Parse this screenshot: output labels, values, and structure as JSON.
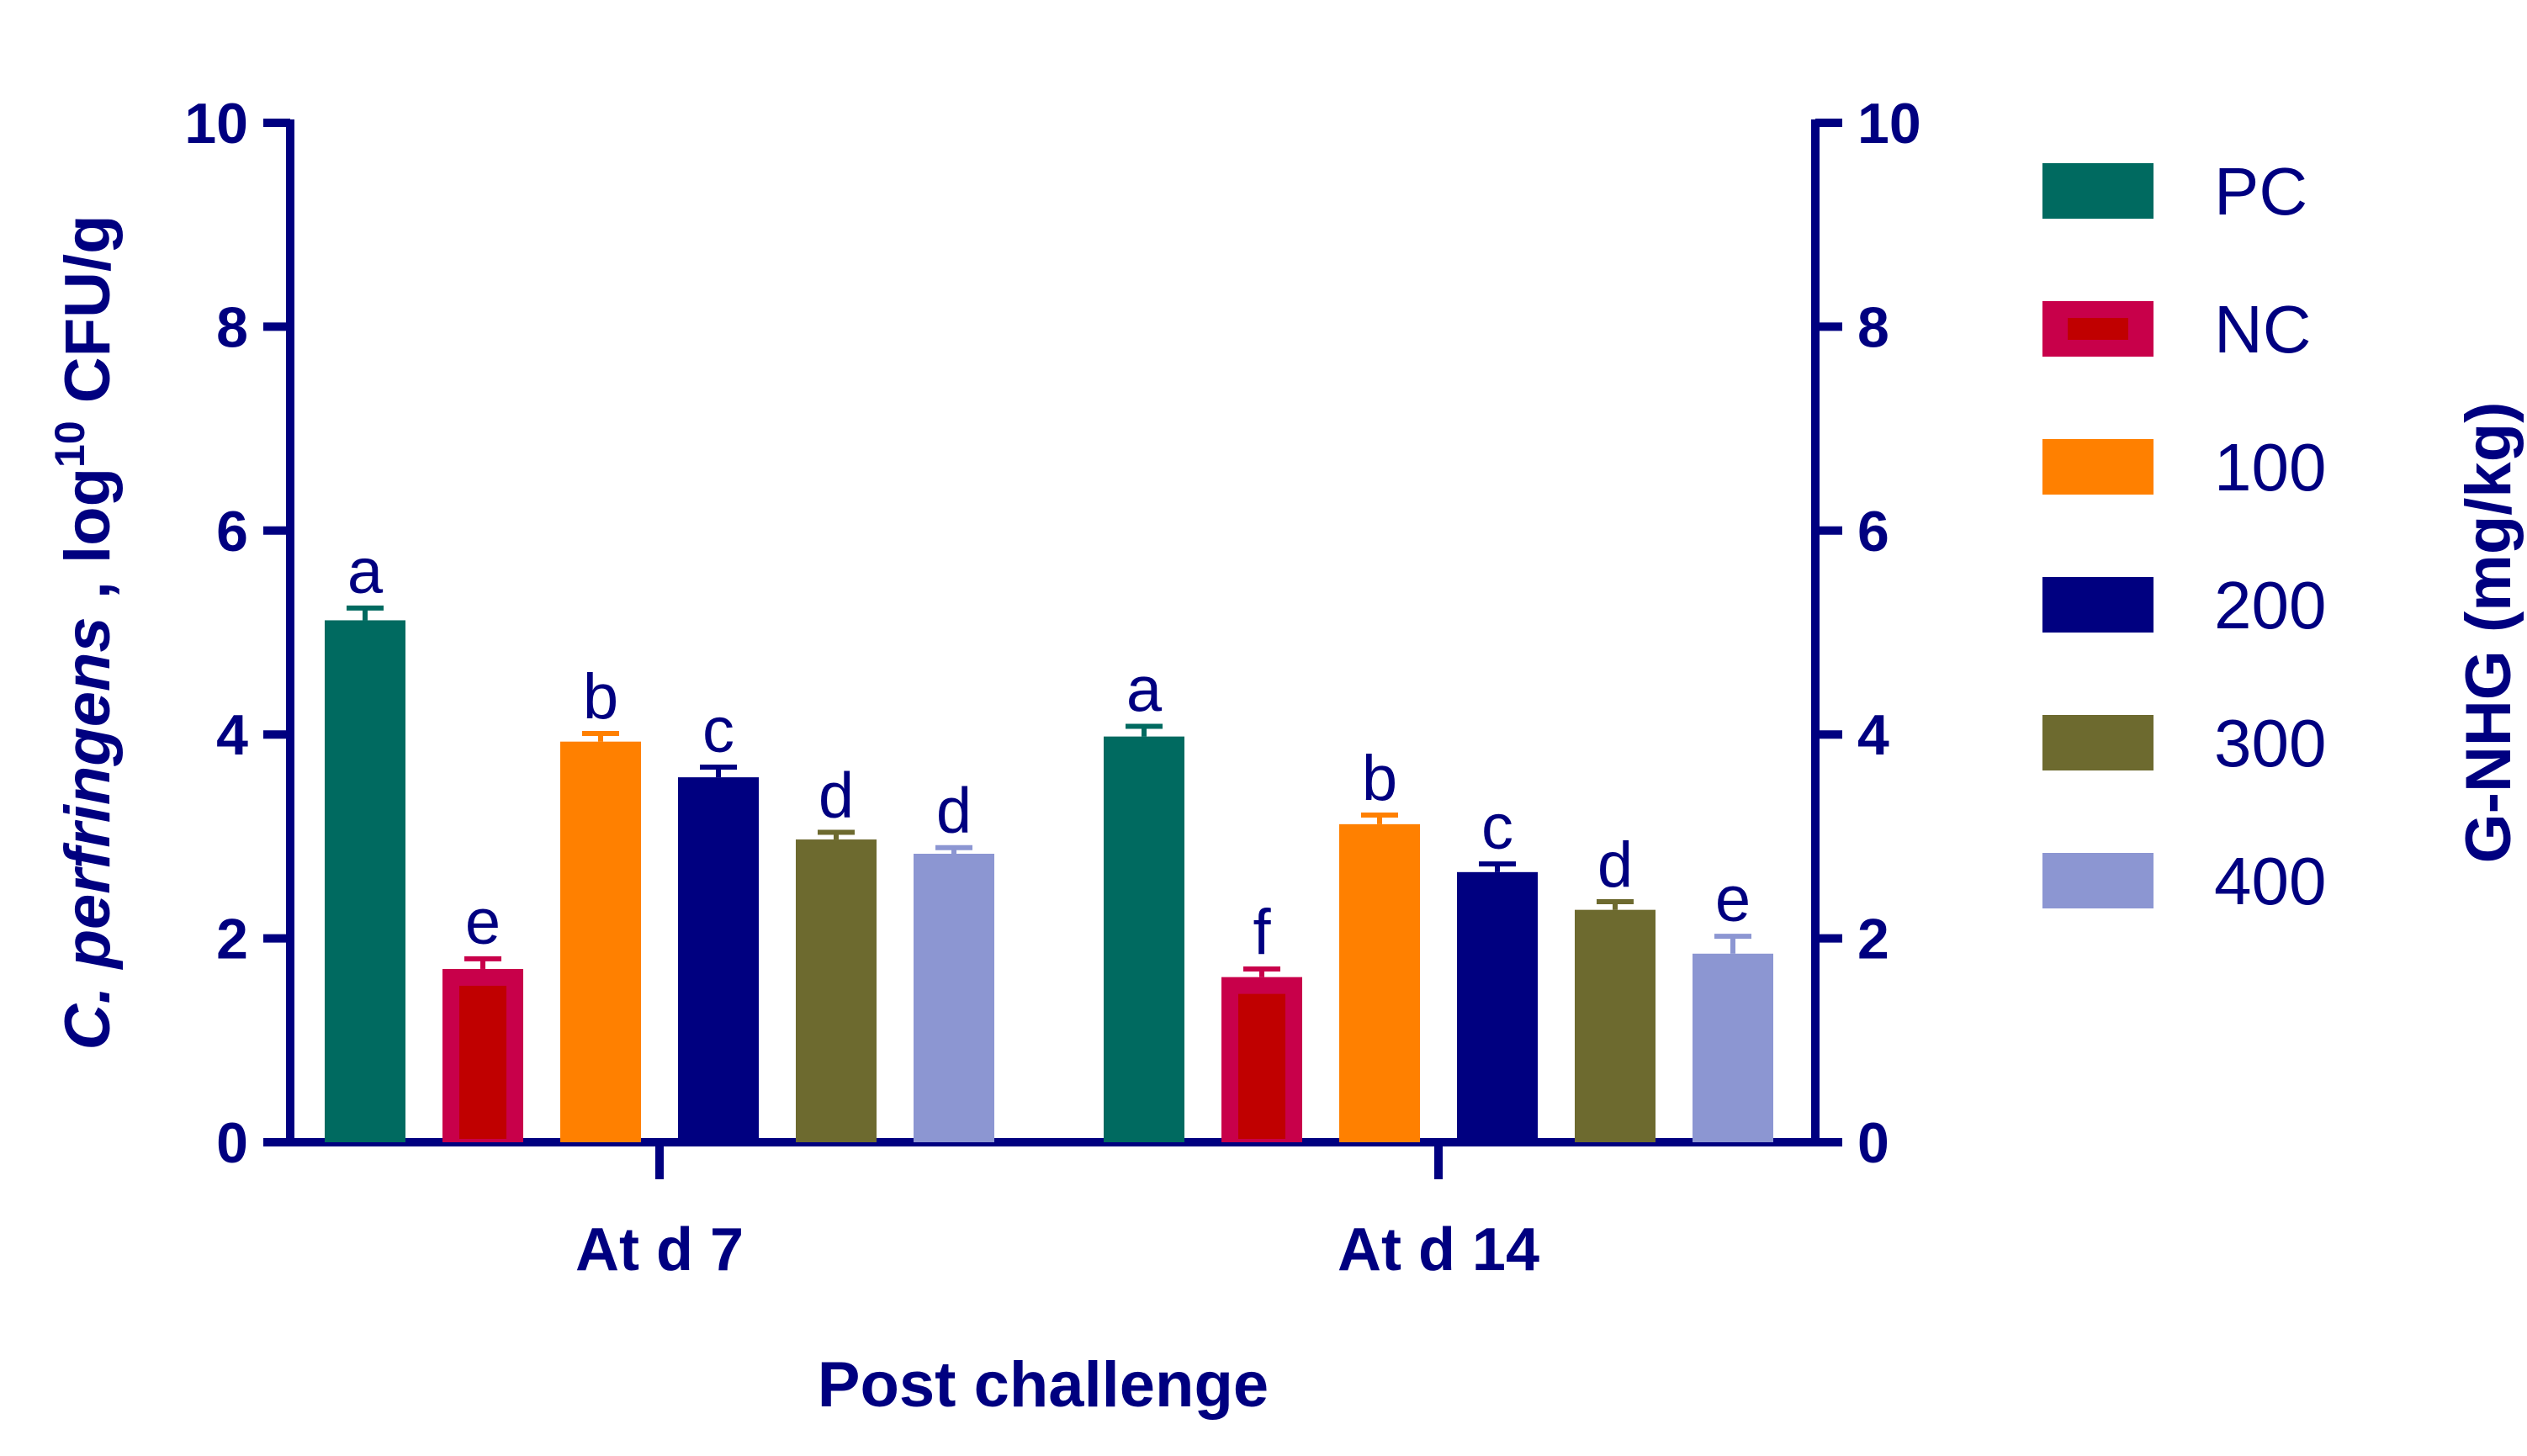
{
  "chart_data": {
    "type": "bar",
    "xlabel": "Post challenge",
    "ylabel": {
      "italic": "C. perfringens",
      "rest1": " , log",
      "sup": "10",
      "rest2": " CFU/g"
    },
    "y2label": "G-NHG (mg/kg)",
    "ylim": [
      0,
      10
    ],
    "y2lim": [
      0,
      10
    ],
    "yticks": [
      "0",
      "2",
      "4",
      "6",
      "8",
      "10"
    ],
    "categories": [
      "At d 7",
      "At d 14"
    ],
    "series": [
      {
        "name": "PC",
        "color": "#006a60",
        "values": [
          5.12,
          3.98
        ],
        "errors": [
          0.12,
          0.1
        ],
        "letters": [
          "a",
          "a"
        ]
      },
      {
        "name": "NC",
        "color": "#c8004a",
        "inner_color": "#c00000",
        "values": [
          1.7,
          1.62
        ],
        "errors": [
          0.1,
          0.08
        ],
        "letters": [
          "e",
          "f"
        ]
      },
      {
        "name": "100",
        "color": "#ff8000",
        "values": [
          3.93,
          3.12
        ],
        "errors": [
          0.08,
          0.09
        ],
        "letters": [
          "b",
          "b"
        ]
      },
      {
        "name": "200",
        "color": "#000080",
        "values": [
          3.58,
          2.65
        ],
        "errors": [
          0.1,
          0.08
        ],
        "letters": [
          "c",
          "c"
        ]
      },
      {
        "name": "300",
        "color": "#6d6a2f",
        "values": [
          2.97,
          2.28
        ],
        "errors": [
          0.07,
          0.08
        ],
        "letters": [
          "d",
          "d"
        ]
      },
      {
        "name": "400",
        "color": "#8c96d2",
        "values": [
          2.83,
          1.85
        ],
        "errors": [
          0.06,
          0.17
        ],
        "letters": [
          "d",
          "e"
        ]
      }
    ],
    "legend_position": "right",
    "grid": false,
    "axis_color": "#000080"
  }
}
